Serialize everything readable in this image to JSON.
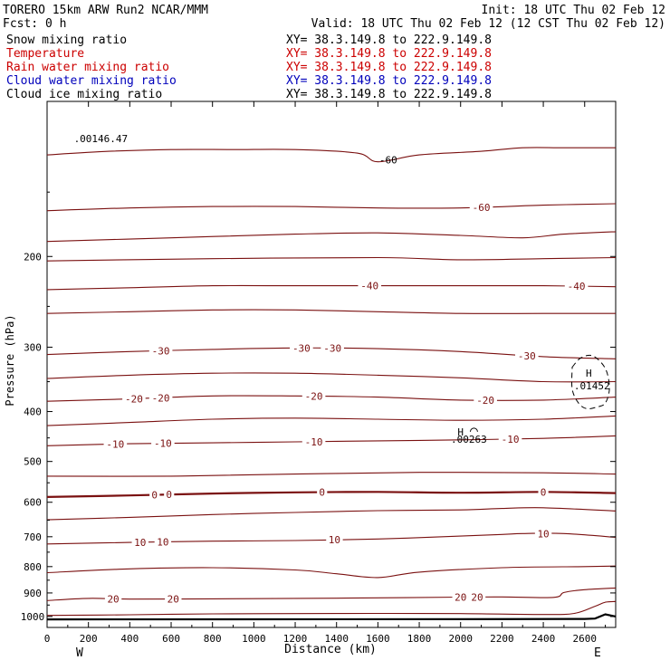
{
  "header": {
    "model": "TORERO   15km ARW    Run2     NCAR/MMM",
    "init": "Init: 18 UTC Thu 02 Feb 12",
    "fcst": "Fcst:     0 h",
    "valid": "Valid: 18 UTC Thu 02 Feb 12 (12 CST Thu 02 Feb 12)"
  },
  "fields": [
    {
      "name": "Snow mixing ratio",
      "xy": "XY=  38.3.149.8 to 222.9.149.8",
      "color": "#000000"
    },
    {
      "name": "Temperature",
      "xy": "XY=  38.3.149.8 to 222.9.149.8",
      "color": "#cc0000"
    },
    {
      "name": "Rain water mixing ratio",
      "xy": "XY=  38.3.149.8 to 222.9.149.8",
      "color": "#cc0000"
    },
    {
      "name": "Cloud water mixing ratio",
      "xy": "XY=  38.3.149.8 to 222.9.149.8",
      "color": "#0000bb"
    },
    {
      "name": "Cloud ice mixing ratio",
      "xy": "XY=  38.3.149.8 to 222.9.149.8",
      "color": "#000000"
    }
  ],
  "colors": {
    "temperature": "#7a1010",
    "zero_isotherm": "#7a1010",
    "ground": "#000000",
    "cloud_ice": "#000000"
  },
  "chart_data": {
    "type": "line",
    "xlabel": "Distance (km)",
    "ylabel": "Pressure (hPa)",
    "xlim": [
      0,
      2750
    ],
    "ylim": [
      1050,
      100
    ],
    "y_scale": "log",
    "x_ticks": [
      0,
      200,
      400,
      600,
      800,
      1000,
      1200,
      1400,
      1600,
      1800,
      2000,
      2200,
      2400,
      2600
    ],
    "y_ticks": [
      200,
      300,
      400,
      500,
      600,
      700,
      800,
      900,
      1000
    ],
    "x_end_labels": {
      "left": "W",
      "right": "E"
    },
    "series": [
      {
        "x": [
          0,
          300,
          600,
          900,
          1200,
          1500,
          1600,
          1800,
          2100,
          2300,
          2500,
          2750
        ],
        "y": [
          127,
          125,
          124,
          124,
          124,
          126,
          131,
          127,
          125,
          123,
          123,
          123
        ]
      },
      {
        "x": [
          0,
          400,
          800,
          1200,
          1600,
          2000,
          2400,
          2750
        ],
        "y": [
          163,
          161,
          160,
          160,
          161,
          161,
          159,
          158
        ],
        "labels": [
          {
            "text": "-60",
            "x": 2100
          }
        ]
      },
      {
        "x": [
          0,
          600,
          1200,
          1600,
          2000,
          2300,
          2500,
          2750
        ],
        "y": [
          187,
          184,
          181,
          180,
          182,
          184,
          181,
          179
        ]
      },
      {
        "x": [
          0,
          800,
          1600,
          2000,
          2400,
          2750
        ],
        "y": [
          204,
          202,
          201,
          203,
          202,
          201
        ]
      },
      {
        "x": [
          0,
          400,
          800,
          1200,
          1600,
          2000,
          2400,
          2750
        ],
        "y": [
          232,
          230,
          228,
          228,
          228,
          228,
          228,
          229
        ],
        "labels": [
          {
            "text": "-40",
            "x": 1560
          },
          {
            "text": "-40",
            "x": 2560
          }
        ]
      },
      {
        "x": [
          0,
          400,
          800,
          1200,
          1600,
          2000,
          2400,
          2750
        ],
        "y": [
          258,
          256,
          254,
          254,
          256,
          258,
          258,
          258
        ]
      },
      {
        "x": [
          0,
          400,
          800,
          1200,
          1600,
          2000,
          2400,
          2750
        ],
        "y": [
          310,
          306,
          303,
          301,
          302,
          306,
          313,
          316
        ],
        "labels": [
          {
            "text": "-30",
            "x": 550
          },
          {
            "text": "-30",
            "x": 1230
          },
          {
            "text": "-30",
            "x": 1380
          },
          {
            "text": "-30",
            "x": 2320
          }
        ]
      },
      {
        "x": [
          0,
          400,
          800,
          1200,
          1600,
          2000,
          2400,
          2750
        ],
        "y": [
          345,
          340,
          337,
          337,
          340,
          344,
          350,
          350
        ]
      },
      {
        "x": [
          0,
          400,
          800,
          1200,
          1600,
          2000,
          2400,
          2750
        ],
        "y": [
          382,
          378,
          373,
          373,
          375,
          380,
          380,
          375
        ],
        "labels": [
          {
            "text": "-20",
            "x": 420
          },
          {
            "text": "-20",
            "x": 550
          },
          {
            "text": "-20",
            "x": 1290
          },
          {
            "text": "-20",
            "x": 2120
          }
        ]
      },
      {
        "x": [
          0,
          400,
          800,
          1200,
          1600,
          2000,
          2400,
          2750
        ],
        "y": [
          426,
          420,
          414,
          412,
          414,
          416,
          414,
          408
        ]
      },
      {
        "x": [
          0,
          400,
          800,
          1200,
          1600,
          2000,
          2400,
          2750
        ],
        "y": [
          466,
          462,
          460,
          458,
          456,
          454,
          451,
          446
        ],
        "labels": [
          {
            "text": "-10",
            "x": 330
          },
          {
            "text": "-10",
            "x": 560
          },
          {
            "text": "-10",
            "x": 1290
          },
          {
            "text": "-10",
            "x": 2240
          }
        ]
      },
      {
        "x": [
          0,
          600,
          1200,
          1800,
          2400,
          2750
        ],
        "y": [
          534,
          534,
          529,
          525,
          526,
          529
        ]
      },
      {
        "x": [
          0,
          400,
          800,
          1200,
          1600,
          2000,
          2400,
          2750
        ],
        "y": [
          586,
          582,
          577,
          574,
          573,
          575,
          573,
          576
        ],
        "highlight": true,
        "labels": [
          {
            "text": "0",
            "x": 520
          },
          {
            "text": "0",
            "x": 590
          },
          {
            "text": "0",
            "x": 1330
          },
          {
            "text": "0",
            "x": 2400
          }
        ]
      },
      {
        "x": [
          0,
          400,
          800,
          1200,
          1600,
          2000,
          2200,
          2400,
          2750
        ],
        "y": [
          649,
          642,
          634,
          628,
          623,
          621,
          617,
          615,
          624
        ]
      },
      {
        "x": [
          0,
          400,
          800,
          1200,
          1600,
          2000,
          2200,
          2300,
          2500,
          2750
        ],
        "y": [
          723,
          718,
          714,
          712,
          707,
          698,
          693,
          690,
          690,
          702
        ],
        "labels": [
          {
            "text": "10",
            "x": 450
          },
          {
            "text": "10",
            "x": 560
          },
          {
            "text": "10",
            "x": 1390
          },
          {
            "text": "10",
            "x": 2400
          }
        ]
      },
      {
        "x": [
          0,
          400,
          800,
          1200,
          1400,
          1600,
          1800,
          2200,
          2600,
          2750
        ],
        "y": [
          822,
          808,
          804,
          812,
          826,
          840,
          820,
          804,
          800,
          798
        ]
      },
      {
        "x": [
          0,
          200,
          400,
          800,
          1200,
          1600,
          2000,
          2200,
          2450,
          2500,
          2600,
          2750
        ],
        "y": [
          931,
          922,
          925,
          924,
          922,
          920,
          917,
          916,
          918,
          898,
          887,
          880
        ],
        "labels": [
          {
            "text": "20",
            "x": 320
          },
          {
            "text": "20",
            "x": 610
          },
          {
            "text": "20",
            "x": 2000
          },
          {
            "text": "20",
            "x": 2080
          }
        ]
      },
      {
        "x": [
          0,
          400,
          800,
          1200,
          1600,
          2000,
          2400,
          2550,
          2650,
          2700,
          2750
        ],
        "y": [
          995,
          992,
          988,
          987,
          986,
          987,
          991,
          986,
          955,
          938,
          935
        ]
      }
    ],
    "ground": {
      "x": [
        0,
        2000,
        2600,
        2650,
        2700,
        2750
      ],
      "y": [
        1013,
        1012,
        1011,
        1009,
        990,
        1000
      ]
    },
    "cloud_ice_contour": {
      "x": [
        2540,
        2580,
        2640,
        2700,
        2720,
        2700,
        2660,
        2610,
        2570,
        2540,
        2540
      ],
      "y": [
        328,
        315,
        312,
        330,
        360,
        385,
        392,
        395,
        385,
        362,
        328
      ]
    },
    "annotations": [
      {
        "text": "H",
        "x": 2620,
        "y": 342
      },
      {
        "text": ".01452",
        "x": 2635,
        "y": 362
      },
      {
        "text": "H",
        "x": 2000,
        "y": 445
      },
      {
        "text": ".00263",
        "x": 2040,
        "y": 460
      },
      {
        "text": ".00146.47",
        "x": 260,
        "y": 120
      },
      {
        "text": "-60",
        "x": 1650,
        "y": 132
      }
    ]
  }
}
